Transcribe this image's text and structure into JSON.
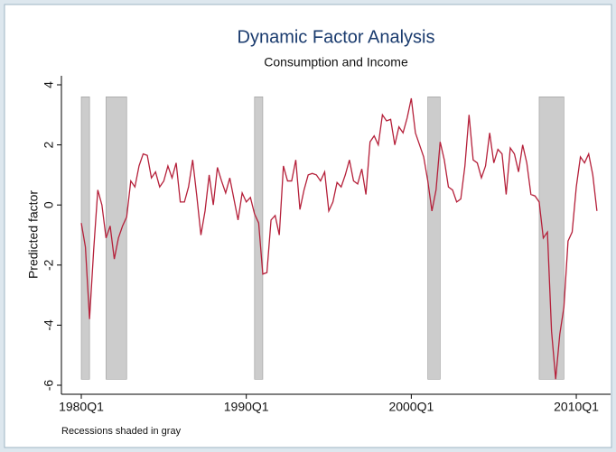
{
  "chart_data": {
    "type": "line",
    "title": "Dynamic Factor Analysis",
    "subtitle": "Consumption and Income",
    "y_label": "Predicted factor",
    "note": "Recessions shaded in gray",
    "categories": [
      "1980Q1",
      "1980Q2",
      "1980Q3",
      "1980Q4",
      "1981Q1",
      "1981Q2",
      "1981Q3",
      "1981Q4",
      "1982Q1",
      "1982Q2",
      "1982Q3",
      "1982Q4",
      "1983Q1",
      "1983Q2",
      "1983Q3",
      "1983Q4",
      "1984Q1",
      "1984Q2",
      "1984Q3",
      "1984Q4",
      "1985Q1",
      "1985Q2",
      "1985Q3",
      "1985Q4",
      "1986Q1",
      "1986Q2",
      "1986Q3",
      "1986Q4",
      "1987Q1",
      "1987Q2",
      "1987Q3",
      "1987Q4",
      "1988Q1",
      "1988Q2",
      "1988Q3",
      "1988Q4",
      "1989Q1",
      "1989Q2",
      "1989Q3",
      "1989Q4",
      "1990Q1",
      "1990Q2",
      "1990Q3",
      "1990Q4",
      "1991Q1",
      "1991Q2",
      "1991Q3",
      "1991Q4",
      "1992Q1",
      "1992Q2",
      "1992Q3",
      "1992Q4",
      "1993Q1",
      "1993Q2",
      "1993Q3",
      "1993Q4",
      "1994Q1",
      "1994Q2",
      "1994Q3",
      "1994Q4",
      "1995Q1",
      "1995Q2",
      "1995Q3",
      "1995Q4",
      "1996Q1",
      "1996Q2",
      "1996Q3",
      "1996Q4",
      "1997Q1",
      "1997Q2",
      "1997Q3",
      "1997Q4",
      "1998Q1",
      "1998Q2",
      "1998Q3",
      "1998Q4",
      "1999Q1",
      "1999Q2",
      "1999Q3",
      "1999Q4",
      "2000Q1",
      "2000Q2",
      "2000Q3",
      "2000Q4",
      "2001Q1",
      "2001Q2",
      "2001Q3",
      "2001Q4",
      "2002Q1",
      "2002Q2",
      "2002Q3",
      "2002Q4",
      "2003Q1",
      "2003Q2",
      "2003Q3",
      "2003Q4",
      "2004Q1",
      "2004Q2",
      "2004Q3",
      "2004Q4",
      "2005Q1",
      "2005Q2",
      "2005Q3",
      "2005Q4",
      "2006Q1",
      "2006Q2",
      "2006Q3",
      "2006Q4",
      "2007Q1",
      "2007Q2",
      "2007Q3",
      "2007Q4",
      "2008Q1",
      "2008Q2",
      "2008Q3",
      "2008Q4",
      "2009Q1",
      "2009Q2",
      "2009Q3",
      "2009Q4",
      "2010Q1",
      "2010Q2",
      "2010Q3",
      "2010Q4",
      "2011Q1",
      "2011Q2"
    ],
    "series": [
      {
        "name": "Predicted factor",
        "color": "#b5203a",
        "values": [
          -0.6,
          -1.4,
          -3.8,
          -1.5,
          0.5,
          0.0,
          -1.1,
          -0.7,
          -1.8,
          -1.1,
          -0.7,
          -0.4,
          0.8,
          0.6,
          1.3,
          1.7,
          1.65,
          0.9,
          1.1,
          0.6,
          0.8,
          1.3,
          0.9,
          1.4,
          0.1,
          0.1,
          0.6,
          1.5,
          0.3,
          -1.0,
          -0.2,
          1.0,
          0.0,
          1.25,
          0.8,
          0.4,
          0.9,
          0.2,
          -0.5,
          0.4,
          0.1,
          0.25,
          -0.3,
          -0.6,
          -2.3,
          -2.25,
          -0.5,
          -0.35,
          -1.0,
          1.3,
          0.8,
          0.8,
          1.5,
          -0.15,
          0.5,
          1.0,
          1.05,
          1.0,
          0.8,
          1.1,
          -0.2,
          0.1,
          0.75,
          0.6,
          1.0,
          1.5,
          0.8,
          0.7,
          1.2,
          0.35,
          2.1,
          2.3,
          2.0,
          3.0,
          2.8,
          2.85,
          2.0,
          2.6,
          2.4,
          2.9,
          3.55,
          2.4,
          2.0,
          1.6,
          0.8,
          -0.2,
          0.5,
          2.1,
          1.5,
          0.6,
          0.5,
          0.1,
          0.2,
          1.3,
          3.0,
          1.5,
          1.4,
          0.9,
          1.3,
          2.4,
          1.4,
          1.85,
          1.7,
          0.35,
          1.9,
          1.7,
          1.1,
          2.0,
          1.4,
          0.35,
          0.3,
          0.1,
          -1.1,
          -0.9,
          -4.2,
          -5.8,
          -4.3,
          -3.4,
          -1.2,
          -0.9,
          0.6,
          1.6,
          1.4,
          1.7,
          1.0,
          -0.2
        ]
      }
    ],
    "recessions": [
      {
        "start": "1980Q1",
        "end": "1980Q3"
      },
      {
        "start": "1981Q3",
        "end": "1982Q4"
      },
      {
        "start": "1990Q3",
        "end": "1991Q1"
      },
      {
        "start": "2001Q1",
        "end": "2001Q4"
      },
      {
        "start": "2007Q4",
        "end": "2009Q2"
      }
    ],
    "recession_color": "#cccccc",
    "shade_range": [
      -5.8,
      3.6
    ],
    "ylim": [
      -6.3,
      4.3
    ],
    "yticks": [
      -6,
      -4,
      -2,
      0,
      2,
      4
    ],
    "xticks": [
      "1980Q1",
      "1990Q1",
      "2000Q1",
      "2010Q1"
    ]
  }
}
